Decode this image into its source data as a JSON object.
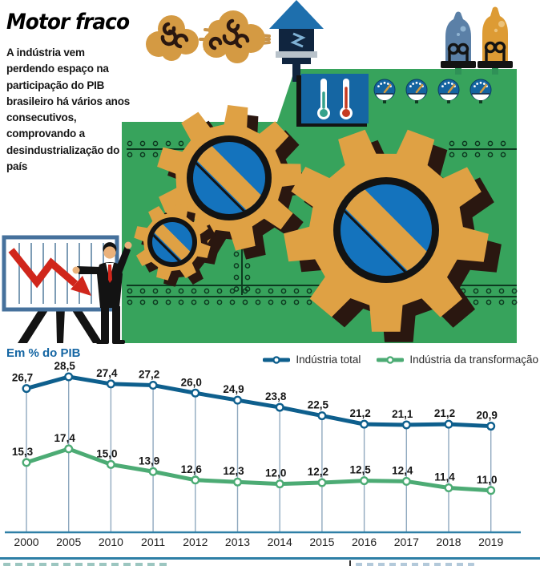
{
  "header": {
    "title": "Motor fraco",
    "description": "A indústria vem perdendo espaço na participação do PIB brasileiro há vários anos consecutivos, comprovando a desindustrialização do país"
  },
  "chart": {
    "axis_label": "Em % do PIB",
    "legend": [
      {
        "label": "Indústria total"
      },
      {
        "label": "Indústria da transformação"
      }
    ]
  },
  "chart_data": {
    "type": "line",
    "categories": [
      "2000",
      "2005",
      "2010",
      "2011",
      "2012",
      "2013",
      "2014",
      "2015",
      "2016",
      "2017",
      "2018",
      "2019"
    ],
    "series": [
      {
        "name": "Indústria total",
        "color": "#0e5f8d",
        "values": [
          26.7,
          28.5,
          27.4,
          27.2,
          26.0,
          24.9,
          23.8,
          22.5,
          21.2,
          21.1,
          21.2,
          20.9
        ]
      },
      {
        "name": "Indústria da transformação",
        "color": "#4cab74",
        "values": [
          15.3,
          17.4,
          15.0,
          13.9,
          12.6,
          12.3,
          12.0,
          12.2,
          12.5,
          12.4,
          11.4,
          11.0
        ]
      }
    ],
    "title": "Motor fraco",
    "ylabel": "Em % do PIB",
    "xlabel": "",
    "ylim": [
      10,
      30
    ],
    "grid": "vertical-gridlines",
    "legend_position": "top-right",
    "decimal_separator": ",",
    "data_labels": true
  },
  "illustration": {
    "description": "Green industrial machine with orange gears, smoke puffs, exhaust chimney, pressure vessels, thermometer panel and gauges; presenter points at a flip chart with a falling red arrow",
    "colors": {
      "machine_green": "#37a35c",
      "gear_orange": "#dfa144",
      "gear_center_blue": "#1473bd",
      "shadow_brown": "#2a1710",
      "panel_blue": "#1566a3",
      "smoke_tan": "#d49a43",
      "arrow_red": "#d0261b"
    }
  }
}
